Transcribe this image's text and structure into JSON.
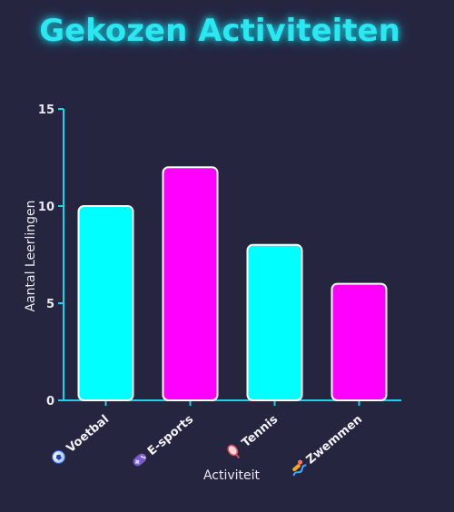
{
  "chart_data": {
    "type": "bar",
    "title": "Gekozen Activiteiten",
    "xlabel": "Activiteit",
    "ylabel": "Aantal Leerlingen",
    "categories": [
      "Voetbal",
      "E-sports",
      "Tennis",
      "Zwemmen"
    ],
    "category_icons": [
      "soccer-ball-icon",
      "game-controller-icon",
      "tennis-racket-icon",
      "swimmer-icon"
    ],
    "values": [
      10,
      12,
      8,
      6
    ],
    "bar_colors": [
      "#00ffff",
      "#ff00ff",
      "#00ffff",
      "#ff00ff"
    ],
    "ylim": [
      0,
      15
    ],
    "yticks": [
      0,
      5,
      10,
      15
    ],
    "axis_color": "#1fd2e6",
    "grid": false,
    "legend": "none"
  }
}
